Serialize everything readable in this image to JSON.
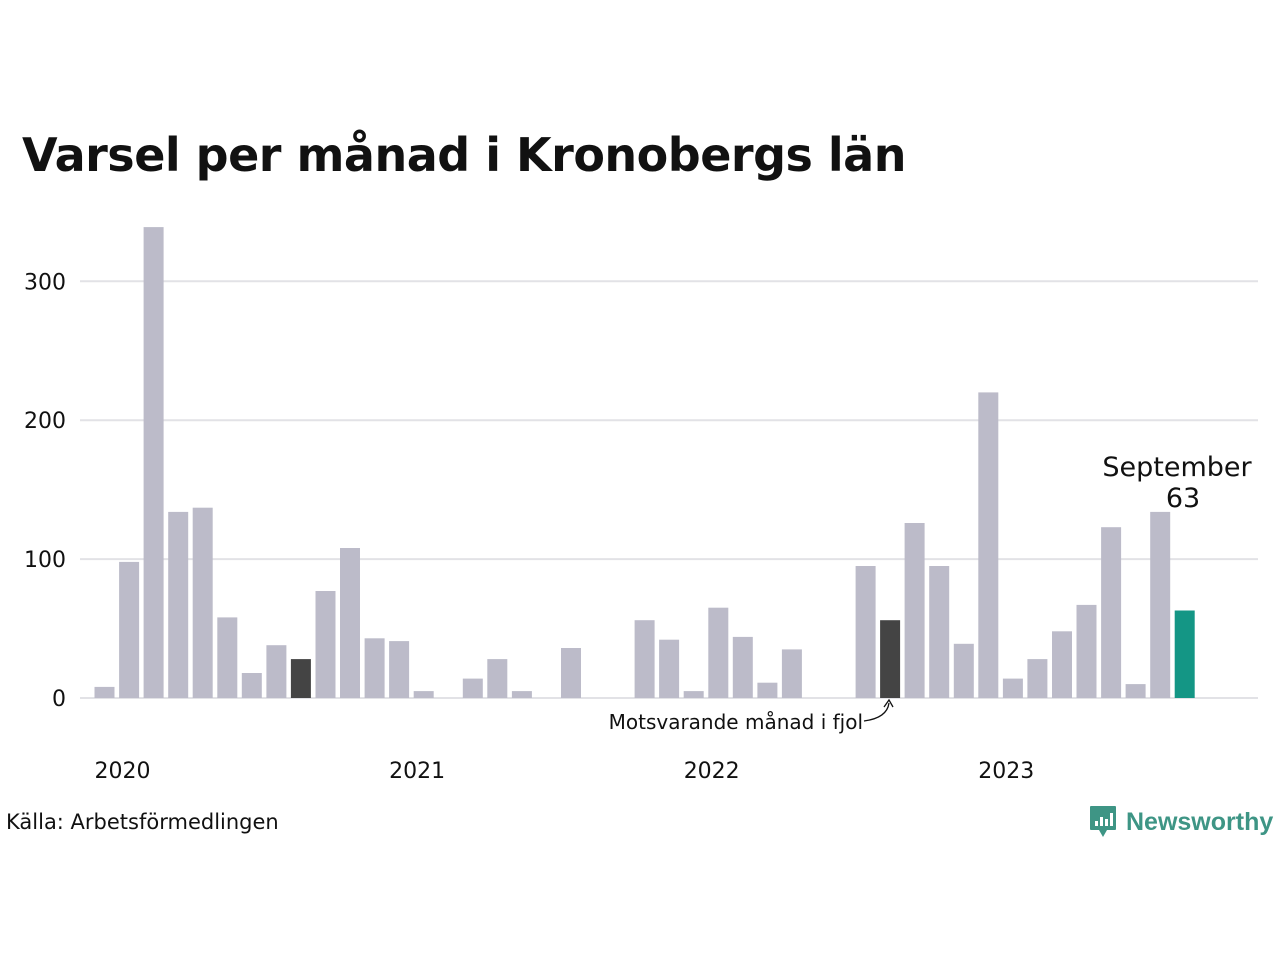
{
  "title": "Varsel per månad i Kronobergs län",
  "source": "Källa: Arbetsförmedlingen",
  "logo_text": "Newsworthy",
  "colors": {
    "bar": "#bcbbc9",
    "same_month_last_year": "#444444",
    "highlight": "#149685",
    "grid": "#e2e2e6",
    "logo": "#3e9585"
  },
  "annotations": {
    "latest_label": "September",
    "latest_value": "63",
    "last_year_label": "Motsvarande månad i fjol"
  },
  "chart_data": {
    "type": "bar",
    "title": "Varsel per månad i Kronobergs län",
    "xlabel": "",
    "ylabel": "",
    "ylim": [
      0,
      340
    ],
    "yticks": [
      0,
      100,
      200,
      300
    ],
    "grid": true,
    "x_tick_labels": [
      {
        "label": "2020",
        "index": 0
      },
      {
        "label": "2021",
        "index": 12
      },
      {
        "label": "2022",
        "index": 24
      },
      {
        "label": "2023",
        "index": 36
      }
    ],
    "categories": [
      "2020-01",
      "2020-02",
      "2020-03",
      "2020-04",
      "2020-05",
      "2020-06",
      "2020-07",
      "2020-08",
      "2020-09",
      "2020-10",
      "2020-11",
      "2020-12",
      "2021-01",
      "2021-02",
      "2021-03",
      "2021-04",
      "2021-05",
      "2021-06",
      "2021-07",
      "2021-08",
      "2021-09",
      "2021-10",
      "2021-11",
      "2021-12",
      "2022-01",
      "2022-02",
      "2022-03",
      "2022-04",
      "2022-05",
      "2022-06",
      "2022-07",
      "2022-08",
      "2022-09",
      "2022-10",
      "2022-11",
      "2022-12",
      "2023-01",
      "2023-02",
      "2023-03",
      "2023-04",
      "2023-05",
      "2023-06",
      "2023-07",
      "2023-08",
      "2023-09"
    ],
    "values": [
      8,
      98,
      339,
      134,
      137,
      58,
      18,
      38,
      28,
      77,
      108,
      43,
      41,
      5,
      0,
      14,
      28,
      5,
      0,
      36,
      0,
      0,
      56,
      42,
      5,
      65,
      44,
      11,
      35,
      0,
      0,
      95,
      56,
      126,
      95,
      39,
      220,
      14,
      28,
      48,
      67,
      123,
      10,
      134,
      63
    ],
    "highlight_index": 44,
    "last_year_indices": [
      8,
      32
    ]
  }
}
